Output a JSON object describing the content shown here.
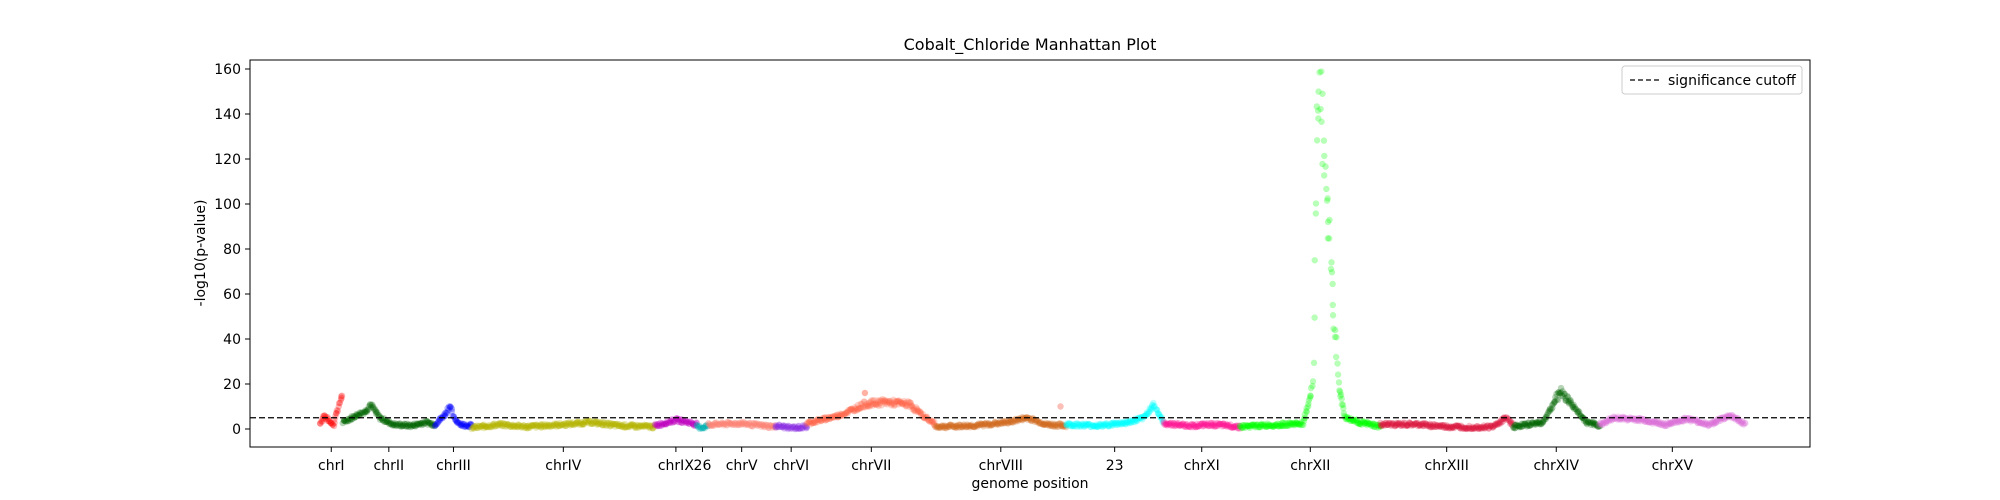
{
  "chart_data": {
    "type": "scatter",
    "title": "Cobalt_Chloride Manhattan Plot",
    "xlabel": "genome position",
    "ylabel": "-log10(p-value)",
    "ylim": [
      -8,
      164
    ],
    "yticks": [
      0,
      20,
      40,
      60,
      80,
      100,
      120,
      140,
      160
    ],
    "grid": false,
    "legend": {
      "placement": "top-right",
      "entries": [
        {
          "label": "significance cutoff",
          "style": "dashed-line"
        }
      ]
    },
    "significance_cutoff": 5,
    "chromosomes": [
      {
        "label": "chrI",
        "color": "#ff0000",
        "range": [
          0.0,
          0.0158
        ],
        "points": [
          [
            0,
            2.5
          ],
          [
            0.2,
            6
          ],
          [
            0.4,
            3.5
          ],
          [
            0.6,
            2
          ],
          [
            0.75,
            8
          ],
          [
            0.85,
            10
          ],
          [
            0.95,
            15
          ],
          [
            1,
            14
          ]
        ]
      },
      {
        "label": "chrII",
        "color": "#006400",
        "range": [
          0.0158,
          0.0808
        ],
        "points": [
          [
            0,
            3
          ],
          [
            0.25,
            8
          ],
          [
            0.3,
            11
          ],
          [
            0.4,
            5
          ],
          [
            0.55,
            2
          ],
          [
            0.75,
            1.5
          ],
          [
            0.9,
            3
          ],
          [
            1,
            2
          ]
        ]
      },
      {
        "label": "chrIII",
        "color": "#0000ff",
        "range": [
          0.0808,
          0.1065
        ],
        "points": [
          [
            0,
            2
          ],
          [
            0.3,
            7
          ],
          [
            0.4,
            11
          ],
          [
            0.5,
            5
          ],
          [
            0.7,
            2
          ],
          [
            1,
            1.5
          ]
        ]
      },
      {
        "label": "chrIV",
        "color": "#b5b500",
        "range": [
          0.1065,
          0.235
        ],
        "points": [
          [
            0,
            0.5
          ],
          [
            0.15,
            2
          ],
          [
            0.3,
            1
          ],
          [
            0.5,
            2
          ],
          [
            0.65,
            3
          ],
          [
            0.8,
            1.5
          ],
          [
            1,
            1
          ]
        ]
      },
      {
        "label": "chrIX",
        "color": "#c000c0",
        "range": [
          0.235,
          0.2645
        ],
        "points": [
          [
            0,
            1.5
          ],
          [
            0.5,
            4
          ],
          [
            0.8,
            3
          ],
          [
            1,
            2
          ]
        ]
      },
      {
        "label": "26",
        "color": "#00b0b0",
        "range": [
          0.2645,
          0.2723
        ],
        "points": [
          [
            0,
            1
          ],
          [
            0.5,
            0.6
          ],
          [
            1,
            1.5
          ]
        ]
      },
      {
        "label": "chrV",
        "color": "#fa8072",
        "range": [
          0.2723,
          0.3195
        ],
        "points": [
          [
            0,
            2
          ],
          [
            0.5,
            2.5
          ],
          [
            0.8,
            1.5
          ],
          [
            1,
            1
          ]
        ]
      },
      {
        "label": "chrVI",
        "color": "#8a2be2",
        "range": [
          0.3195,
          0.3418
        ],
        "points": [
          [
            0,
            1.5
          ],
          [
            0.5,
            0.5
          ],
          [
            1,
            1
          ]
        ]
      },
      {
        "label": "chrVII",
        "color": "#ff6347",
        "range": [
          0.3418,
          0.432
        ],
        "points": [
          [
            0,
            2.5
          ],
          [
            0.25,
            6
          ],
          [
            0.45,
            11
          ],
          [
            0.6,
            12
          ],
          [
            0.8,
            11
          ],
          [
            0.9,
            6
          ],
          [
            1,
            2
          ]
        ]
      },
      {
        "label": "chrVIII",
        "color": "#d2691e",
        "range": [
          0.432,
          0.5235
        ],
        "points": [
          [
            0,
            1
          ],
          [
            0.3,
            1.5
          ],
          [
            0.55,
            3
          ],
          [
            0.7,
            5
          ],
          [
            0.85,
            2
          ],
          [
            1,
            1.5
          ]
        ]
      },
      {
        "label": "23",
        "color": "#00ffff",
        "range": [
          0.5235,
          0.5918
        ],
        "points": [
          [
            0,
            2
          ],
          [
            0.35,
            1.5
          ],
          [
            0.65,
            3
          ],
          [
            0.8,
            5
          ],
          [
            0.9,
            11
          ],
          [
            1,
            3
          ]
        ]
      },
      {
        "label": "chrXI",
        "color": "#ff1493",
        "range": [
          0.5918,
          0.6457
        ],
        "points": [
          [
            0,
            2.5
          ],
          [
            0.35,
            1.5
          ],
          [
            0.65,
            2
          ],
          [
            1,
            1
          ]
        ]
      },
      {
        "label": "chrXII",
        "color": "#00ff00",
        "range": [
          0.6457,
          0.7442
        ],
        "points": [
          [
            0,
            1
          ],
          [
            0.3,
            2
          ],
          [
            0.45,
            2.5
          ],
          [
            0.52,
            20
          ],
          [
            0.55,
            150
          ],
          [
            0.57,
            155
          ],
          [
            0.6,
            120
          ],
          [
            0.65,
            70
          ],
          [
            0.7,
            20
          ],
          [
            0.75,
            5
          ],
          [
            0.85,
            3
          ],
          [
            1,
            1
          ]
        ]
      },
      {
        "label": "chrXIII",
        "color": "#dc143c",
        "range": [
          0.7442,
          0.8371
        ],
        "points": [
          [
            0,
            2
          ],
          [
            0.3,
            2
          ],
          [
            0.5,
            1
          ],
          [
            0.7,
            0.8
          ],
          [
            0.85,
            1
          ],
          [
            0.95,
            5
          ],
          [
            1,
            2
          ]
        ]
      },
      {
        "label": "chrXIV",
        "color": "#006400",
        "range": [
          0.8371,
          0.898
        ],
        "points": [
          [
            0,
            1
          ],
          [
            0.35,
            3
          ],
          [
            0.55,
            17
          ],
          [
            0.7,
            10
          ],
          [
            0.85,
            3
          ],
          [
            1,
            1.5
          ]
        ]
      },
      {
        "label": "chrXV",
        "color": "#da70d6",
        "range": [
          0.898,
          1.0
        ],
        "points": [
          [
            0,
            2
          ],
          [
            0.1,
            5
          ],
          [
            0.3,
            4
          ],
          [
            0.45,
            2
          ],
          [
            0.6,
            4.5
          ],
          [
            0.75,
            2
          ],
          [
            0.9,
            6
          ],
          [
            1,
            2
          ]
        ]
      }
    ],
    "outliers": [
      {
        "color": "#fa8072",
        "chrom": "chrVIII",
        "x": 0.958,
        "y": 10
      },
      {
        "color": "#ff6347",
        "chrom": "chrVII",
        "x": 0.45,
        "y": 16
      }
    ]
  }
}
